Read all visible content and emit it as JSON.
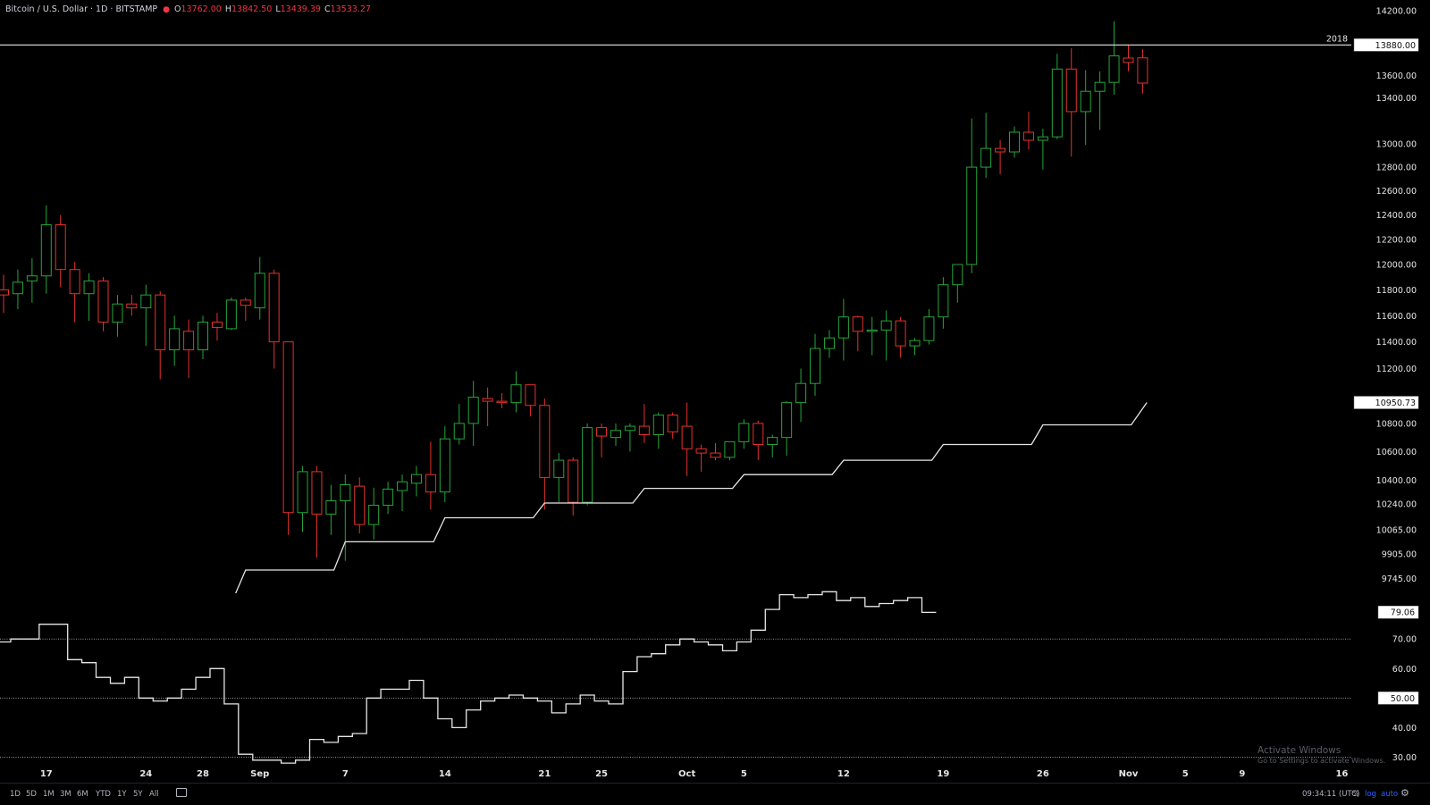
{
  "header": {
    "symbol": "Bitcoin / U.S. Dollar · 1D · BITSTAMP",
    "open_label": "O",
    "open": "13762.00",
    "high_label": "H",
    "high": "13842.50",
    "low_label": "L",
    "low": "13439.39",
    "close_label": "C",
    "close": "13533.27"
  },
  "colors": {
    "up": "#26a63a",
    "down": "#e5322b",
    "line": "#e6e6e6",
    "background": "#000000",
    "axis_text": "#e6e6e6"
  },
  "chart_data": [
    {
      "type": "candlestick",
      "log_scale": true,
      "y_range": [
        9650,
        14300
      ],
      "y_ticks": [
        "14200.00",
        "13600.00",
        "13400.00",
        "13000.00",
        "12800.00",
        "12600.00",
        "12400.00",
        "12200.00",
        "12000.00",
        "11800.00",
        "11600.00",
        "11400.00",
        "11200.00",
        "10800.00",
        "10600.00",
        "10400.00",
        "10240.00",
        "10065.00",
        "9905.00",
        "9745.00"
      ],
      "x_range": [
        0,
        120
      ],
      "x_ticks": [
        {
          "label": "17",
          "i": 3
        },
        {
          "label": "24",
          "i": 10
        },
        {
          "label": "28",
          "i": 14
        },
        {
          "label": "Sep",
          "i": 18
        },
        {
          "label": "7",
          "i": 24
        },
        {
          "label": "14",
          "i": 31
        },
        {
          "label": "21",
          "i": 38
        },
        {
          "label": "25",
          "i": 42
        },
        {
          "label": "Oct",
          "i": 48
        },
        {
          "label": "5",
          "i": 52
        },
        {
          "label": "12",
          "i": 59
        },
        {
          "label": "19",
          "i": 66
        },
        {
          "label": "26",
          "i": 73
        },
        {
          "label": "Nov",
          "i": 79
        },
        {
          "label": "5",
          "i": 83
        },
        {
          "label": "9",
          "i": 87
        },
        {
          "label": "16",
          "i": 94
        }
      ],
      "candles": [
        {
          "o": 11800,
          "h": 11920,
          "l": 11620,
          "c": 11760
        },
        {
          "o": 11770,
          "h": 11960,
          "l": 11650,
          "c": 11860
        },
        {
          "o": 11870,
          "h": 12050,
          "l": 11700,
          "c": 11910
        },
        {
          "o": 11910,
          "h": 12480,
          "l": 11770,
          "c": 12320
        },
        {
          "o": 12320,
          "h": 12400,
          "l": 11820,
          "c": 11960
        },
        {
          "o": 11960,
          "h": 12020,
          "l": 11550,
          "c": 11770
        },
        {
          "o": 11770,
          "h": 11930,
          "l": 11560,
          "c": 11870
        },
        {
          "o": 11870,
          "h": 11900,
          "l": 11480,
          "c": 11550
        },
        {
          "o": 11550,
          "h": 11760,
          "l": 11440,
          "c": 11690
        },
        {
          "o": 11690,
          "h": 11760,
          "l": 11600,
          "c": 11660
        },
        {
          "o": 11660,
          "h": 11840,
          "l": 11370,
          "c": 11760
        },
        {
          "o": 11760,
          "h": 11790,
          "l": 11120,
          "c": 11340
        },
        {
          "o": 11340,
          "h": 11600,
          "l": 11220,
          "c": 11500
        },
        {
          "o": 11480,
          "h": 11570,
          "l": 11130,
          "c": 11340
        },
        {
          "o": 11340,
          "h": 11600,
          "l": 11270,
          "c": 11550
        },
        {
          "o": 11550,
          "h": 11620,
          "l": 11410,
          "c": 11510
        },
        {
          "o": 11500,
          "h": 11740,
          "l": 11490,
          "c": 11720
        },
        {
          "o": 11720,
          "h": 11740,
          "l": 11560,
          "c": 11680
        },
        {
          "o": 11660,
          "h": 12060,
          "l": 11570,
          "c": 11930
        },
        {
          "o": 11930,
          "h": 11960,
          "l": 11200,
          "c": 11400
        },
        {
          "o": 11400,
          "h": 11400,
          "l": 10030,
          "c": 10180
        },
        {
          "o": 10180,
          "h": 10500,
          "l": 10050,
          "c": 10460
        },
        {
          "o": 10460,
          "h": 10500,
          "l": 9880,
          "c": 10170
        },
        {
          "o": 10170,
          "h": 10370,
          "l": 10030,
          "c": 10260
        },
        {
          "o": 10260,
          "h": 10440,
          "l": 9860,
          "c": 10370
        },
        {
          "o": 10360,
          "h": 10420,
          "l": 10040,
          "c": 10100
        },
        {
          "o": 10100,
          "h": 10350,
          "l": 10000,
          "c": 10230
        },
        {
          "o": 10230,
          "h": 10390,
          "l": 10170,
          "c": 10340
        },
        {
          "o": 10330,
          "h": 10440,
          "l": 10190,
          "c": 10390
        },
        {
          "o": 10380,
          "h": 10500,
          "l": 10290,
          "c": 10440
        },
        {
          "o": 10440,
          "h": 10670,
          "l": 10200,
          "c": 10320
        },
        {
          "o": 10320,
          "h": 10780,
          "l": 10250,
          "c": 10690
        },
        {
          "o": 10690,
          "h": 10940,
          "l": 10650,
          "c": 10800
        },
        {
          "o": 10800,
          "h": 11110,
          "l": 10640,
          "c": 10990
        },
        {
          "o": 10980,
          "h": 11060,
          "l": 10780,
          "c": 10960
        },
        {
          "o": 10960,
          "h": 11020,
          "l": 10910,
          "c": 10950
        },
        {
          "o": 10950,
          "h": 11180,
          "l": 10880,
          "c": 11080
        },
        {
          "o": 11080,
          "h": 11080,
          "l": 10850,
          "c": 10930
        },
        {
          "o": 10930,
          "h": 10980,
          "l": 10200,
          "c": 10420
        },
        {
          "o": 10420,
          "h": 10590,
          "l": 10250,
          "c": 10540
        },
        {
          "o": 10540,
          "h": 10560,
          "l": 10160,
          "c": 10250
        },
        {
          "o": 10250,
          "h": 10800,
          "l": 10230,
          "c": 10770
        },
        {
          "o": 10770,
          "h": 10800,
          "l": 10560,
          "c": 10710
        },
        {
          "o": 10700,
          "h": 10800,
          "l": 10640,
          "c": 10750
        },
        {
          "o": 10750,
          "h": 10800,
          "l": 10600,
          "c": 10780
        },
        {
          "o": 10780,
          "h": 10940,
          "l": 10660,
          "c": 10720
        },
        {
          "o": 10720,
          "h": 10880,
          "l": 10620,
          "c": 10860
        },
        {
          "o": 10860,
          "h": 10880,
          "l": 10690,
          "c": 10740
        },
        {
          "o": 10780,
          "h": 10950,
          "l": 10430,
          "c": 10620
        },
        {
          "o": 10620,
          "h": 10650,
          "l": 10460,
          "c": 10590
        },
        {
          "o": 10590,
          "h": 10660,
          "l": 10540,
          "c": 10560
        },
        {
          "o": 10560,
          "h": 10670,
          "l": 10540,
          "c": 10670
        },
        {
          "o": 10670,
          "h": 10830,
          "l": 10620,
          "c": 10800
        },
        {
          "o": 10800,
          "h": 10820,
          "l": 10540,
          "c": 10650
        },
        {
          "o": 10650,
          "h": 10720,
          "l": 10560,
          "c": 10700
        },
        {
          "o": 10700,
          "h": 10960,
          "l": 10570,
          "c": 10950
        },
        {
          "o": 10950,
          "h": 11200,
          "l": 10810,
          "c": 11090
        },
        {
          "o": 11090,
          "h": 11460,
          "l": 11000,
          "c": 11350
        },
        {
          "o": 11350,
          "h": 11490,
          "l": 11280,
          "c": 11430
        },
        {
          "o": 11430,
          "h": 11730,
          "l": 11260,
          "c": 11590
        },
        {
          "o": 11590,
          "h": 11600,
          "l": 11330,
          "c": 11480
        },
        {
          "o": 11480,
          "h": 11590,
          "l": 11300,
          "c": 11490
        },
        {
          "o": 11490,
          "h": 11640,
          "l": 11260,
          "c": 11560
        },
        {
          "o": 11560,
          "h": 11590,
          "l": 11280,
          "c": 11370
        },
        {
          "o": 11370,
          "h": 11430,
          "l": 11300,
          "c": 11410
        },
        {
          "o": 11410,
          "h": 11650,
          "l": 11380,
          "c": 11590
        },
        {
          "o": 11590,
          "h": 11900,
          "l": 11500,
          "c": 11840
        },
        {
          "o": 11840,
          "h": 12000,
          "l": 11700,
          "c": 12000
        },
        {
          "o": 12000,
          "h": 13220,
          "l": 11930,
          "c": 12800
        },
        {
          "o": 12800,
          "h": 13270,
          "l": 12710,
          "c": 12960
        },
        {
          "o": 12960,
          "h": 13030,
          "l": 12740,
          "c": 12930
        },
        {
          "o": 12930,
          "h": 13150,
          "l": 12880,
          "c": 13100
        },
        {
          "o": 13100,
          "h": 13280,
          "l": 12950,
          "c": 13030
        },
        {
          "o": 13030,
          "h": 13130,
          "l": 12780,
          "c": 13060
        },
        {
          "o": 13060,
          "h": 13800,
          "l": 13040,
          "c": 13660
        },
        {
          "o": 13660,
          "h": 13850,
          "l": 12890,
          "c": 13280
        },
        {
          "o": 13280,
          "h": 13650,
          "l": 12990,
          "c": 13460
        },
        {
          "o": 13460,
          "h": 13640,
          "l": 13120,
          "c": 13540
        },
        {
          "o": 13540,
          "h": 14100,
          "l": 13430,
          "c": 13780
        },
        {
          "o": 13760,
          "h": 13880,
          "l": 13640,
          "c": 13720
        },
        {
          "o": 13762,
          "h": 13842.5,
          "l": 13439.39,
          "c": 13533.27
        }
      ],
      "step_line": [
        {
          "x": 16.3,
          "y": 9650
        },
        {
          "x": 17.0,
          "y": 9800
        },
        {
          "x": 23.2,
          "y": 9800
        },
        {
          "x": 24.0,
          "y": 9985
        },
        {
          "x": 30.2,
          "y": 9985
        },
        {
          "x": 31.0,
          "y": 10145
        },
        {
          "x": 37.2,
          "y": 10145
        },
        {
          "x": 38.0,
          "y": 10245
        },
        {
          "x": 44.2,
          "y": 10245
        },
        {
          "x": 45.0,
          "y": 10345
        },
        {
          "x": 51.2,
          "y": 10345
        },
        {
          "x": 52.0,
          "y": 10440
        },
        {
          "x": 58.2,
          "y": 10440
        },
        {
          "x": 59.0,
          "y": 10540
        },
        {
          "x": 65.2,
          "y": 10540
        },
        {
          "x": 66.0,
          "y": 10650
        },
        {
          "x": 72.2,
          "y": 10650
        },
        {
          "x": 73.0,
          "y": 10790
        },
        {
          "x": 79.2,
          "y": 10790
        },
        {
          "x": 80.3,
          "y": 10950.73
        }
      ],
      "horizontal_line": {
        "value": 13880,
        "label": "2018"
      },
      "price_labels": [
        "13880.00",
        "10950.73"
      ]
    },
    {
      "type": "line",
      "step": true,
      "y_range": [
        25,
        100
      ],
      "y_ticks": [
        "70.00",
        "60.00",
        "40.00",
        "30.00"
      ],
      "levels": [
        70,
        50,
        30
      ],
      "level_labels": [
        "50.00"
      ],
      "values": [
        69,
        70,
        70,
        75,
        75,
        63,
        62,
        57,
        55,
        57,
        50,
        49,
        50,
        53,
        57,
        60,
        48,
        31,
        29,
        29,
        28,
        29,
        36,
        35,
        37,
        38,
        50,
        53,
        53,
        56,
        50,
        43,
        40,
        46,
        49,
        50,
        51,
        50,
        49,
        45,
        48,
        51,
        49,
        48,
        59,
        64,
        65,
        68,
        70,
        69,
        68,
        66,
        69,
        73,
        80,
        85,
        84,
        85,
        86,
        83,
        84,
        81,
        82,
        83,
        84,
        79
      ],
      "last_value_label": "79.06"
    }
  ],
  "toolbar": {
    "timeframes": [
      "1D",
      "5D",
      "1M",
      "3M",
      "6M",
      "YTD",
      "1Y",
      "5Y",
      "All"
    ],
    "clock": "09:34:11 (UTC)",
    "percent": "%",
    "log": "log",
    "auto": "auto",
    "settings_icon": "gear-icon",
    "compare_icon": "calendar-range-icon"
  },
  "watermark": {
    "line1": "Activate Windows",
    "line2": "Go to Settings to activate Windows."
  }
}
